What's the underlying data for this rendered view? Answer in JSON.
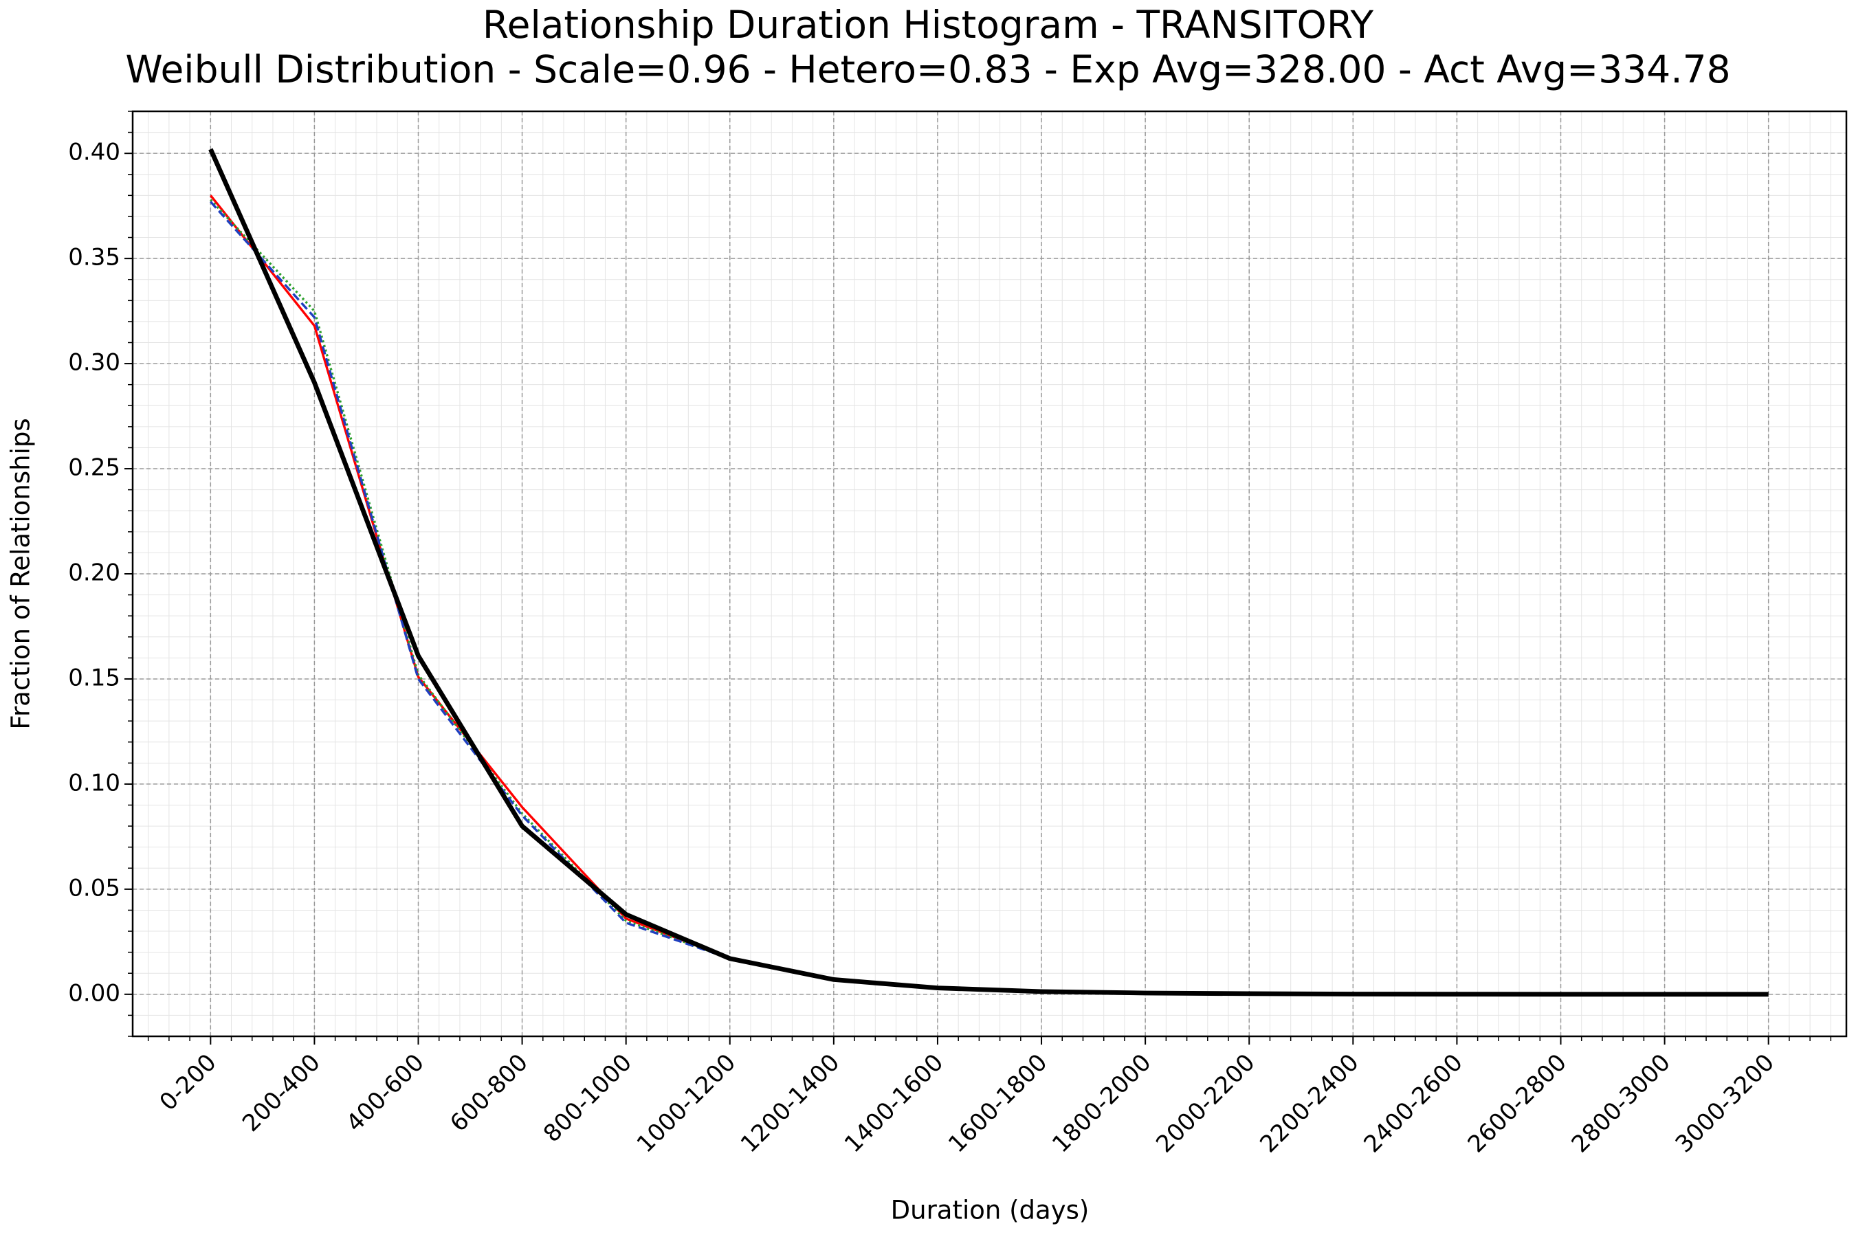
{
  "chart_data": {
    "type": "line",
    "title": "Relationship Duration Histogram - TRANSITORY",
    "subtitle": "Weibull Distribution - Scale=0.96 - Hetero=0.83 - Exp Avg=328.00 - Act Avg=334.78",
    "x_label": "Duration (days)",
    "y_label": "Fraction of Relationships",
    "categories": [
      "0-200",
      "200-400",
      "400-600",
      "600-800",
      "800-1000",
      "1000-1200",
      "1200-1400",
      "1400-1600",
      "1600-1800",
      "1800-2000",
      "2000-2200",
      "2200-2400",
      "2400-2600",
      "2600-2800",
      "2800-3000",
      "3000-3200"
    ],
    "series": [
      {
        "color": "#ff0000",
        "style": "solid",
        "width": 2,
        "values": [
          0.38,
          0.318,
          0.151,
          0.089,
          0.036,
          0.017,
          null,
          null,
          null,
          null,
          null,
          null,
          null,
          null,
          null,
          null
        ]
      },
      {
        "color": "#2ca02c",
        "style": "dotted",
        "width": 2,
        "values": [
          0.378,
          0.325,
          0.152,
          0.086,
          0.035,
          0.017,
          null,
          null,
          null,
          null,
          null,
          null,
          null,
          null,
          null,
          null
        ]
      },
      {
        "color": "#1f3fbf",
        "style": "dashed",
        "width": 2,
        "values": [
          0.377,
          0.322,
          0.15,
          0.085,
          0.034,
          0.017,
          null,
          null,
          null,
          null,
          null,
          null,
          null,
          null,
          null,
          null
        ]
      },
      {
        "color": "#000000",
        "style": "solid",
        "width": 4,
        "values": [
          0.402,
          0.291,
          0.161,
          0.08,
          0.038,
          0.017,
          0.007,
          0.003,
          0.0013,
          0.0006,
          0.0003,
          0.0001,
          5e-05,
          0,
          0,
          0
        ]
      }
    ],
    "ylim": [
      -0.02,
      0.42
    ],
    "yticks": [
      {
        "value": 0,
        "label": "0.00"
      },
      {
        "value": 0.05,
        "label": "0.05"
      },
      {
        "value": 0.1,
        "label": "0.10"
      },
      {
        "value": 0.15,
        "label": "0.15"
      },
      {
        "value": 0.2,
        "label": "0.20"
      },
      {
        "value": 0.25,
        "label": "0.25"
      },
      {
        "value": 0.3,
        "label": "0.30"
      },
      {
        "value": 0.35,
        "label": "0.35"
      },
      {
        "value": 0.4,
        "label": "0.40"
      }
    ],
    "grid": true,
    "minor_grid": true
  }
}
